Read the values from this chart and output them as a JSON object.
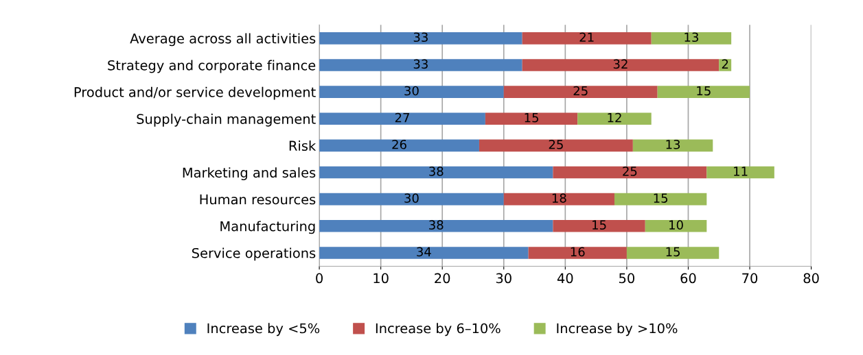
{
  "chart_data": {
    "type": "bar",
    "orientation": "horizontal",
    "stacked": true,
    "data_labels": true,
    "grid": "x",
    "legend": "bottom",
    "categories": [
      "Average across all activities",
      "Strategy and corporate finance",
      "Product and/or service development",
      "Supply-chain management",
      "Risk",
      "Marketing and sales",
      "Human resources",
      "Manufacturing",
      "Service operations"
    ],
    "series": [
      {
        "name": "Increase by <5%",
        "color": "#4f81bd",
        "values": [
          33,
          33,
          30,
          27,
          26,
          38,
          30,
          38,
          34
        ]
      },
      {
        "name": "Increase by 6–10%",
        "color": "#c0504d",
        "values": [
          21,
          32,
          25,
          15,
          25,
          25,
          18,
          15,
          16
        ]
      },
      {
        "name": "Increase by >10%",
        "color": "#9bbb59",
        "values": [
          13,
          2,
          15,
          12,
          13,
          11,
          15,
          10,
          15
        ]
      }
    ],
    "xlim": [
      0,
      80
    ],
    "xticks": [
      0,
      10,
      20,
      30,
      40,
      50,
      60,
      70,
      80
    ]
  }
}
